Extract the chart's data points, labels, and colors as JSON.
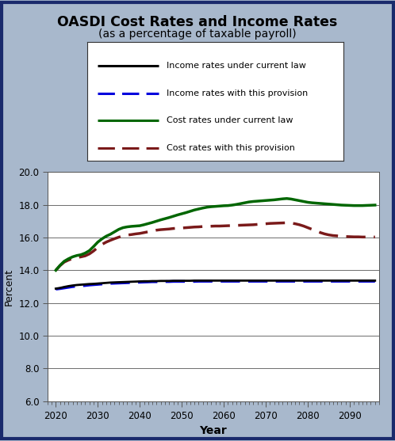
{
  "title": "OASDI Cost Rates and Income Rates",
  "subtitle": "(as a percentage of taxable payroll)",
  "xlabel": "Year",
  "ylabel": "Percent",
  "bg_color": "#a8b8cc",
  "plot_bg_color": "#ffffff",
  "border_color": "#1a2a6c",
  "ylim": [
    6.0,
    20.0
  ],
  "yticks": [
    6.0,
    8.0,
    10.0,
    12.0,
    14.0,
    16.0,
    18.0,
    20.0
  ],
  "xlim": [
    2018,
    2097
  ],
  "xticks": [
    2020,
    2030,
    2040,
    2050,
    2060,
    2070,
    2080,
    2090
  ],
  "years": [
    2020,
    2021,
    2022,
    2023,
    2024,
    2025,
    2026,
    2027,
    2028,
    2029,
    2030,
    2031,
    2032,
    2033,
    2034,
    2035,
    2036,
    2037,
    2038,
    2039,
    2040,
    2041,
    2042,
    2043,
    2044,
    2045,
    2046,
    2047,
    2048,
    2049,
    2050,
    2051,
    2052,
    2053,
    2054,
    2055,
    2056,
    2057,
    2058,
    2059,
    2060,
    2061,
    2062,
    2063,
    2064,
    2065,
    2066,
    2067,
    2068,
    2069,
    2070,
    2071,
    2072,
    2073,
    2074,
    2075,
    2076,
    2077,
    2078,
    2079,
    2080,
    2081,
    2082,
    2083,
    2084,
    2085,
    2086,
    2087,
    2088,
    2089,
    2090,
    2091,
    2092,
    2093,
    2094,
    2095,
    2096
  ],
  "income_current_law": [
    12.88,
    12.92,
    12.98,
    13.03,
    13.07,
    13.1,
    13.12,
    13.14,
    13.16,
    13.17,
    13.19,
    13.21,
    13.23,
    13.25,
    13.26,
    13.27,
    13.28,
    13.29,
    13.3,
    13.31,
    13.32,
    13.33,
    13.33,
    13.34,
    13.34,
    13.35,
    13.35,
    13.35,
    13.36,
    13.36,
    13.36,
    13.36,
    13.36,
    13.37,
    13.37,
    13.37,
    13.37,
    13.37,
    13.37,
    13.37,
    13.37,
    13.37,
    13.37,
    13.37,
    13.37,
    13.37,
    13.37,
    13.37,
    13.37,
    13.37,
    13.37,
    13.37,
    13.37,
    13.37,
    13.37,
    13.37,
    13.37,
    13.37,
    13.37,
    13.37,
    13.37,
    13.37,
    13.37,
    13.37,
    13.37,
    13.37,
    13.37,
    13.37,
    13.37,
    13.37,
    13.37,
    13.37,
    13.37,
    13.37,
    13.37,
    13.37,
    13.37
  ],
  "income_provision": [
    12.85,
    12.88,
    12.92,
    12.96,
    13.0,
    13.03,
    13.05,
    13.07,
    13.1,
    13.12,
    13.14,
    13.16,
    13.18,
    13.2,
    13.21,
    13.22,
    13.23,
    13.24,
    13.25,
    13.26,
    13.27,
    13.28,
    13.29,
    13.3,
    13.3,
    13.31,
    13.31,
    13.31,
    13.32,
    13.32,
    13.32,
    13.32,
    13.32,
    13.32,
    13.33,
    13.33,
    13.33,
    13.33,
    13.33,
    13.33,
    13.33,
    13.33,
    13.33,
    13.33,
    13.33,
    13.33,
    13.33,
    13.33,
    13.33,
    13.33,
    13.33,
    13.33,
    13.33,
    13.33,
    13.33,
    13.33,
    13.33,
    13.33,
    13.33,
    13.33,
    13.33,
    13.33,
    13.33,
    13.33,
    13.33,
    13.33,
    13.33,
    13.33,
    13.33,
    13.33,
    13.33,
    13.33,
    13.33,
    13.33,
    13.33,
    13.33,
    13.33
  ],
  "cost_current_law": [
    14.0,
    14.3,
    14.55,
    14.7,
    14.82,
    14.9,
    14.95,
    15.05,
    15.2,
    15.45,
    15.72,
    15.92,
    16.08,
    16.2,
    16.35,
    16.5,
    16.6,
    16.65,
    16.68,
    16.7,
    16.72,
    16.78,
    16.85,
    16.92,
    17.0,
    17.08,
    17.15,
    17.22,
    17.3,
    17.38,
    17.45,
    17.52,
    17.6,
    17.68,
    17.74,
    17.8,
    17.85,
    17.88,
    17.9,
    17.92,
    17.94,
    17.95,
    17.98,
    18.02,
    18.07,
    18.12,
    18.17,
    18.2,
    18.22,
    18.24,
    18.26,
    18.28,
    18.3,
    18.33,
    18.36,
    18.38,
    18.35,
    18.3,
    18.25,
    18.2,
    18.15,
    18.12,
    18.1,
    18.08,
    18.06,
    18.04,
    18.02,
    18.0,
    17.98,
    17.97,
    17.96,
    17.95,
    17.95,
    17.95,
    17.96,
    17.97,
    17.98
  ],
  "cost_provision": [
    14.0,
    14.28,
    14.5,
    14.62,
    14.72,
    14.78,
    14.82,
    14.88,
    15.0,
    15.18,
    15.4,
    15.58,
    15.72,
    15.83,
    15.93,
    16.02,
    16.1,
    16.15,
    16.18,
    16.22,
    16.25,
    16.3,
    16.35,
    16.4,
    16.45,
    16.48,
    16.5,
    16.52,
    16.55,
    16.57,
    16.58,
    16.6,
    16.62,
    16.64,
    16.65,
    16.67,
    16.68,
    16.69,
    16.7,
    16.7,
    16.71,
    16.72,
    16.73,
    16.74,
    16.75,
    16.76,
    16.77,
    16.78,
    16.8,
    16.82,
    16.84,
    16.86,
    16.87,
    16.88,
    16.89,
    16.9,
    16.88,
    16.84,
    16.78,
    16.7,
    16.6,
    16.5,
    16.4,
    16.3,
    16.22,
    16.16,
    16.12,
    16.1,
    16.08,
    16.06,
    16.05,
    16.04,
    16.04,
    16.03,
    16.03,
    16.03,
    16.03
  ],
  "income_current_law_color": "#000000",
  "income_provision_color": "#0000dd",
  "cost_current_law_color": "#006600",
  "cost_provision_color": "#7a1a1a",
  "legend_labels": [
    "Income rates under current law",
    "Income rates with this provision",
    "Cost rates under current law",
    "Cost rates with this provision"
  ]
}
